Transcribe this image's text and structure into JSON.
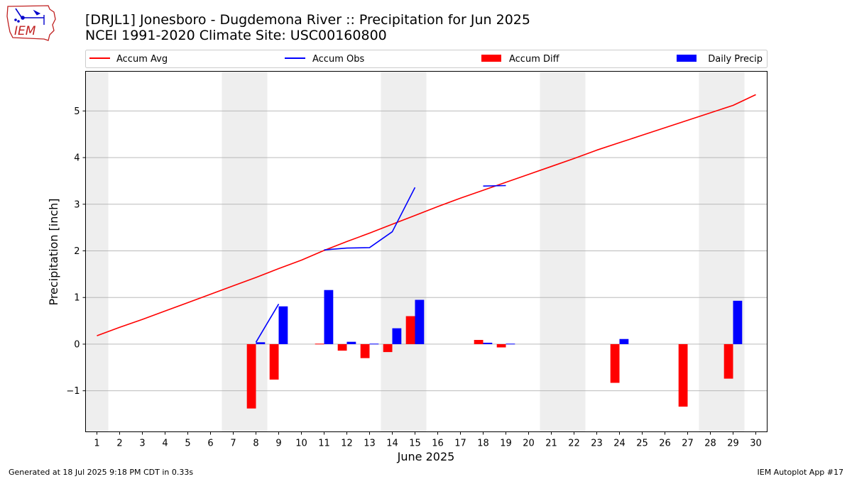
{
  "header": {
    "title_line1": "[DRJL1] Jonesboro - Dugdemona River :: Precipitation for Jun 2025",
    "title_line2": "NCEI 1991-2020 Climate Site: USC00160800",
    "logo_text": "IEM"
  },
  "footer": {
    "generated": "Generated at 18 Jul 2025 9:18 PM CDT in 0.33s",
    "app": "IEM Autoplot App #17"
  },
  "colors": {
    "accum_avg": "#ff0000",
    "accum_obs": "#0000ff",
    "accum_diff": "#ff0000",
    "daily_precip": "#0000ff",
    "weekend_band": "#eeeeee",
    "grid": "#b0b0b0"
  },
  "chart_data": {
    "type": "bar",
    "title": "[DRJL1] Jonesboro - Dugdemona River :: Precipitation for Jun 2025",
    "xlabel": "June 2025",
    "ylabel": "Precipitation [inch]",
    "xlim": [
      0.5,
      30.5
    ],
    "ylim": [
      -1.88,
      5.85
    ],
    "yticks": [
      -1,
      0,
      1,
      2,
      3,
      4,
      5
    ],
    "ytick_labels": [
      "−1",
      "0",
      "1",
      "2",
      "3",
      "4",
      "5"
    ],
    "days": [
      1,
      2,
      3,
      4,
      5,
      6,
      7,
      8,
      9,
      10,
      11,
      12,
      13,
      14,
      15,
      16,
      17,
      18,
      19,
      20,
      21,
      22,
      23,
      24,
      25,
      26,
      27,
      28,
      29,
      30
    ],
    "weekend_bands": [
      [
        0.5,
        1.5
      ],
      [
        6.5,
        8.5
      ],
      [
        13.5,
        15.5
      ],
      [
        20.5,
        22.5
      ],
      [
        27.5,
        29.5
      ]
    ],
    "grid": "horizontal",
    "legend": {
      "placement": "top",
      "entries": [
        {
          "label": "Accum Avg",
          "kind": "line",
          "color": "#ff0000"
        },
        {
          "label": "Accum Obs",
          "kind": "line",
          "color": "#0000ff"
        },
        {
          "label": "Accum Diff",
          "kind": "bar",
          "color": "#ff0000"
        },
        {
          "label": "Daily Precip",
          "kind": "bar",
          "color": "#0000ff"
        }
      ]
    },
    "series": [
      {
        "name": "Accum Avg",
        "kind": "line",
        "color": "#ff0000",
        "x": [
          1,
          2,
          3,
          4,
          5,
          6,
          7,
          8,
          9,
          10,
          11,
          12,
          13,
          14,
          15,
          16,
          17,
          18,
          19,
          20,
          21,
          22,
          23,
          24,
          25,
          26,
          27,
          28,
          29,
          30
        ],
        "values": [
          0.18,
          0.36,
          0.53,
          0.71,
          0.89,
          1.07,
          1.25,
          1.43,
          1.62,
          1.8,
          2.01,
          2.2,
          2.38,
          2.57,
          2.76,
          2.95,
          3.13,
          3.3,
          3.47,
          3.64,
          3.81,
          3.98,
          4.16,
          4.32,
          4.48,
          4.64,
          4.8,
          4.96,
          5.12,
          5.35
        ]
      },
      {
        "name": "Accum Obs",
        "kind": "line",
        "color": "#0000ff",
        "segments": [
          {
            "x": [
              8,
              9
            ],
            "values": [
              0.04,
              0.86
            ]
          },
          {
            "x": [
              11,
              12,
              13,
              14,
              15
            ],
            "values": [
              2.02,
              2.06,
              2.07,
              2.41,
              3.36
            ]
          },
          {
            "x": [
              18,
              19
            ],
            "values": [
              3.39,
              3.4
            ]
          }
        ]
      },
      {
        "name": "Accum Diff",
        "kind": "bar",
        "color": "#ff0000",
        "x": [
          8,
          9,
          11,
          12,
          13,
          14,
          15,
          18,
          19,
          24,
          27,
          29
        ],
        "values": [
          -1.38,
          -0.76,
          0.01,
          -0.14,
          -0.3,
          -0.17,
          0.6,
          0.09,
          -0.07,
          -0.83,
          -1.34,
          -0.74
        ]
      },
      {
        "name": "Daily Precip",
        "kind": "bar",
        "color": "#0000ff",
        "x": [
          8,
          9,
          11,
          12,
          13,
          14,
          15,
          18,
          19,
          24,
          29
        ],
        "values": [
          0.04,
          0.81,
          1.16,
          0.05,
          0.01,
          0.34,
          0.95,
          0.03,
          0.01,
          0.11,
          0.93
        ]
      }
    ]
  }
}
